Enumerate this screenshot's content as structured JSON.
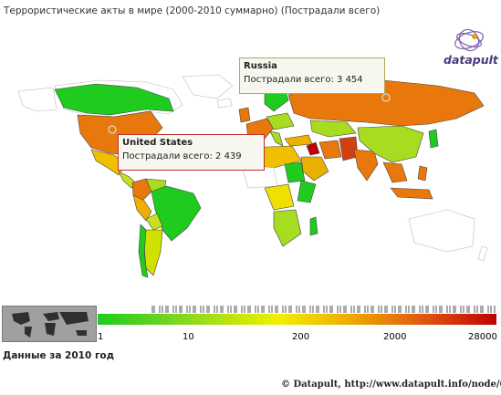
{
  "title": "Террористические акты в мире (2000-2010 суммарно) (Пострадали всего)",
  "logo": "datapult",
  "colors": {
    "low": "#1fcb1f",
    "mid": "#f0f000",
    "high": "#c00000",
    "orange": "#e8780c",
    "nodata": "#ffffff"
  },
  "tooltips": [
    {
      "country": "Russia",
      "label": "Пострадали всего:",
      "value": "3 454"
    },
    {
      "country": "United States",
      "label": "Пострадали всего:",
      "value": "2 439"
    }
  ],
  "legend": {
    "ticks": [
      "1",
      "10",
      "200",
      "2000",
      "28000"
    ]
  },
  "year_label": "Данные за  2010 год",
  "credit": "© Datapult, http://www.datapult.info/node/633"
}
